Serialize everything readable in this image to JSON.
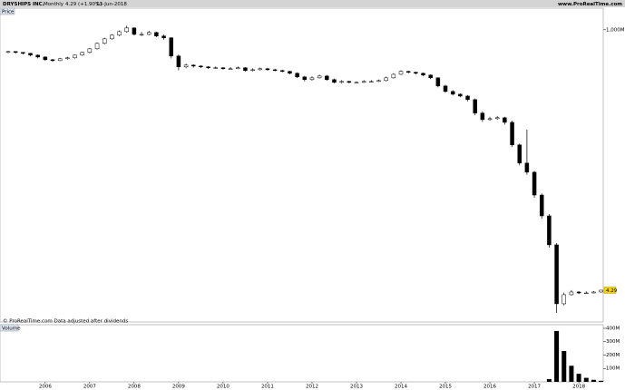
{
  "header": {
    "symbol": "DRYSHIPS INC.",
    "period": "Monthly",
    "last": "4.29 (+1.90%)",
    "date": "13-Jun-2018",
    "site": "www.ProRealTime.com"
  },
  "footnote": "© ProRealTime.com  Data adjusted after dividends",
  "chart_data": [
    {
      "type": "candlestick",
      "title": "Price",
      "log_scale": true,
      "ylim": [
        0.5,
        2700000000
      ],
      "yticks": [
        {
          "value": 1000000000,
          "label": "1,000M"
        }
      ],
      "up_color": "#ffffff",
      "down_color": "#000000",
      "open": [
        190000000.0,
        200000000.0,
        187000000.0,
        175000000.0,
        153000000.0,
        133000000.0,
        109000000.0,
        102000000.0,
        117000000.0,
        125000000.0,
        153000000.0,
        187000000.0,
        244000000.0,
        366000000.0,
        510000000.0,
        670000000.0,
        870000000.0,
        1140000000.0,
        710000000.0,
        710000000.0,
        820000000.0,
        630000000.0,
        550000000.0,
        143000000.0,
        64000000.0,
        73000000.0,
        68000000.0,
        64000000.0,
        60000000.0,
        60000000.0,
        56000000.0,
        56000000.0,
        60000000.0,
        49000000.0,
        52000000.0,
        56000000.0,
        52000000.0,
        49000000.0,
        46000000.0,
        40000000.0,
        30500000.0,
        25000000.0,
        28500000.0,
        32600000.0,
        25000000.0,
        20400000.0,
        21800000.0,
        20400000.0,
        20400000.0,
        21800000.0,
        21800000.0,
        23300000.0,
        28500000.0,
        37000000.0,
        46000000.0,
        43000000.0,
        40000000.0,
        35000000.0,
        28500000.0,
        15600000.0,
        10400000.0,
        8500000.0,
        7400000.0,
        5700000.0,
        2100000.0,
        1300000.0,
        1390000.0,
        1490000.0,
        1060000.0,
        200000.0,
        52000.0,
        26500.0,
        4900,
        1050,
        123,
        1.57,
        3.07,
        3.75,
        3.5,
        3.5,
        3.75
      ],
      "high": [
        210000000.0,
        205000000.0,
        190000000.0,
        180000000.0,
        160000000.0,
        140000000.0,
        115000000.0,
        125000000.0,
        135000000.0,
        160000000.0,
        195000000.0,
        260000000.0,
        390000000.0,
        550000000.0,
        720000000.0,
        950000000.0,
        1350000000.0,
        1200000000.0,
        850000000.0,
        930000000.0,
        860000000.0,
        700000000.0,
        580000000.0,
        160000000.0,
        82000000.0,
        78000000.0,
        72000000.0,
        68000000.0,
        66000000.0,
        64000000.0,
        62000000.0,
        66000000.0,
        63000000.0,
        58000000.0,
        61000000.0,
        60000000.0,
        56000000.0,
        52000000.0,
        48000000.0,
        43000000.0,
        33000000.0,
        32000000.0,
        36000000.0,
        35000000.0,
        27000000.0,
        24000000.0,
        23000000.0,
        22000000.0,
        24000000.0,
        24000000.0,
        25000000.0,
        31000000.0,
        40000000.0,
        50000000.0,
        48000000.0,
        45000000.0,
        42000000.0,
        37000000.0,
        30000000.0,
        17000000.0,
        11500000.0,
        9000000.0,
        8000000.0,
        6200000.0,
        2400000.0,
        1600000.0,
        1700000.0,
        1600000.0,
        1200000.0,
        220000.0,
        620000.0,
        29000.0,
        5500,
        1200,
        140,
        3.6,
        4.3,
        4.0,
        3.9,
        4.0,
        4.4
      ],
      "low": [
        175000000.0,
        170000000.0,
        160000000.0,
        140000000.0,
        120000000.0,
        100000000.0,
        94000000.0,
        98000000.0,
        110000000.0,
        118000000.0,
        145000000.0,
        175000000.0,
        230000000.0,
        340000000.0,
        480000000.0,
        620000000.0,
        800000000.0,
        660000000.0,
        630000000.0,
        660000000.0,
        580000000.0,
        480000000.0,
        120000000.0,
        50000000.0,
        58000000.0,
        61000000.0,
        59000000.0,
        55000000.0,
        55000000.0,
        52000000.0,
        52000000.0,
        54000000.0,
        45000000.0,
        46000000.0,
        49000000.0,
        48000000.0,
        46000000.0,
        43000000.0,
        37000000.0,
        28000000.0,
        22000000.0,
        23000000.0,
        27000000.0,
        23000000.0,
        19000000.0,
        19000000.0,
        19000000.0,
        19000000.0,
        19500000.0,
        20000000.0,
        21000000.0,
        22000000.0,
        27000000.0,
        35000000.0,
        40000000.0,
        37000000.0,
        32000000.0,
        26000000.0,
        14000000.0,
        9500000.0,
        7800000.0,
        6800000.0,
        5000000.0,
        1800000.0,
        1100000.0,
        1200000.0,
        1300000.0,
        900000.0,
        170000.0,
        44000.0,
        22000.0,
        4000,
        850,
        100,
        0.8,
        1.4,
        2.9,
        3.2,
        3.3,
        3.4,
        3.6
      ],
      "close": [
        200000000.0,
        187000000.0,
        175000000.0,
        153000000.0,
        133000000.0,
        109000000.0,
        102000000.0,
        117000000.0,
        125000000.0,
        153000000.0,
        187000000.0,
        244000000.0,
        366000000.0,
        510000000.0,
        670000000.0,
        870000000.0,
        1140000000.0,
        710000000.0,
        710000000.0,
        820000000.0,
        630000000.0,
        550000000.0,
        143000000.0,
        64000000.0,
        73000000.0,
        68000000.0,
        64000000.0,
        60000000.0,
        60000000.0,
        56000000.0,
        56000000.0,
        60000000.0,
        49000000.0,
        52000000.0,
        56000000.0,
        52000000.0,
        49000000.0,
        46000000.0,
        40000000.0,
        30500000.0,
        25000000.0,
        28500000.0,
        32600000.0,
        25000000.0,
        20400000.0,
        21800000.0,
        20400000.0,
        20400000.0,
        21800000.0,
        21800000.0,
        23300000.0,
        28500000.0,
        37000000.0,
        46000000.0,
        43000000.0,
        40000000.0,
        35000000.0,
        28500000.0,
        15600000.0,
        10400000.0,
        8500000.0,
        7400000.0,
        5700000.0,
        2100000.0,
        1300000.0,
        1390000.0,
        1490000.0,
        1060000.0,
        200000.0,
        52000.0,
        26500.0,
        4900,
        1050,
        123,
        1.57,
        3.07,
        3.75,
        3.5,
        3.5,
        3.75,
        4.29
      ]
    },
    {
      "type": "bar",
      "title": "Volume",
      "color": "#000000",
      "ylim": [
        0,
        427000000
      ],
      "yticks": [
        {
          "value": 100000000,
          "label": "100M"
        },
        {
          "value": 200000000,
          "label": "200M"
        },
        {
          "value": 300000000,
          "label": "300M"
        },
        {
          "value": 400000000,
          "label": "400M"
        }
      ],
      "categories": [
        null,
        null,
        null,
        null,
        null,
        "2006",
        null,
        null,
        null,
        null,
        null,
        "2007",
        null,
        null,
        null,
        null,
        null,
        "2008",
        null,
        null,
        null,
        null,
        null,
        "2009",
        null,
        null,
        null,
        null,
        null,
        "2010",
        null,
        null,
        null,
        null,
        null,
        "2011",
        null,
        null,
        null,
        null,
        null,
        "2012",
        null,
        null,
        null,
        null,
        null,
        "2013",
        null,
        null,
        null,
        null,
        null,
        "2014",
        null,
        null,
        null,
        null,
        null,
        "2015",
        null,
        null,
        null,
        null,
        null,
        "2016",
        null,
        null,
        null,
        null,
        null,
        "2017",
        null,
        null,
        null,
        null,
        null,
        "2018",
        null,
        null,
        null
      ],
      "values": [
        0,
        0,
        0,
        0,
        0,
        0,
        0,
        0,
        0,
        0,
        0,
        0,
        0,
        0,
        0,
        0,
        0,
        0,
        0,
        0,
        0,
        0,
        0,
        0,
        0,
        0,
        0,
        0,
        0,
        0,
        0,
        0,
        0,
        0,
        0,
        0,
        0,
        0,
        0,
        0,
        0,
        0,
        0,
        0,
        0,
        0,
        0,
        0,
        0,
        0,
        0,
        0,
        0,
        0,
        0,
        0,
        0,
        0,
        0,
        0,
        0,
        0,
        0,
        0,
        0,
        0,
        0,
        0,
        0,
        0,
        0,
        0,
        0,
        20000000,
        380000000,
        230000000,
        120000000,
        60000000,
        30000000,
        15000000,
        8000000
      ]
    }
  ]
}
